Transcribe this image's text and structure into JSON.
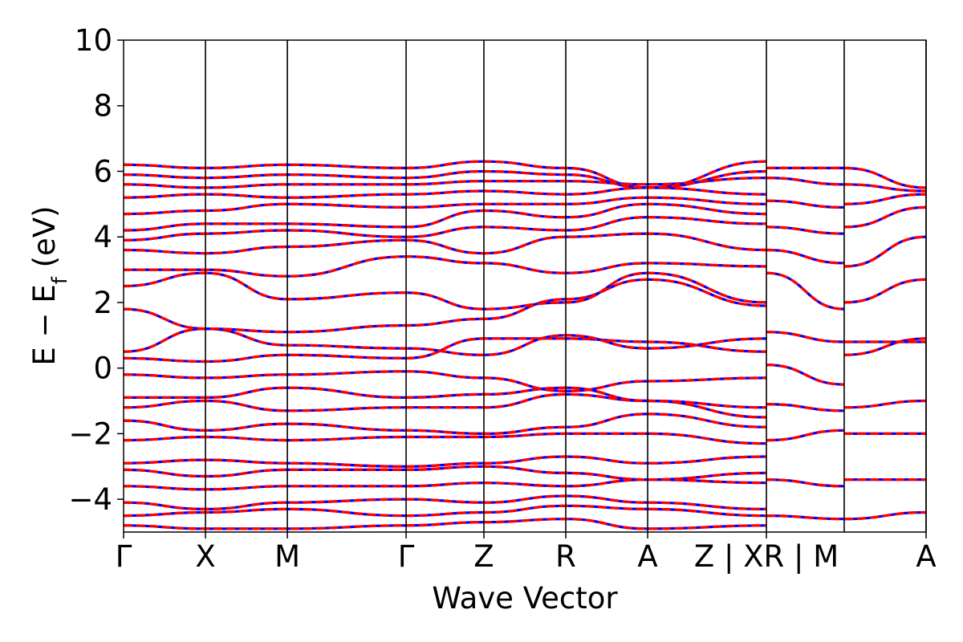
{
  "chart_data": {
    "type": "line",
    "title": "",
    "xlabel": "Wave Vector",
    "ylabel": "E − E",
    "ylabel_sub": "f",
    "ylabel_unit": " (eV)",
    "ylim": [
      -5,
      10
    ],
    "y_ticks": [
      -4,
      -2,
      0,
      2,
      4,
      6,
      8,
      10
    ],
    "y_tick_labels": [
      "−4",
      "−2",
      "0",
      "2",
      "4",
      "6",
      "8",
      "10"
    ],
    "x_range": [
      0,
      9.8
    ],
    "kpoints": [
      {
        "label": "Γ",
        "x": 0
      },
      {
        "label": "X",
        "x": 1.0
      },
      {
        "label": "M",
        "x": 2.0
      },
      {
        "label": "Γ",
        "x": 3.45
      },
      {
        "label": "Z",
        "x": 4.4
      },
      {
        "label": "R",
        "x": 5.4
      },
      {
        "label": "A",
        "x": 6.4
      },
      {
        "label": "Z | XR | M",
        "x": 7.85
      },
      {
        "label": "A",
        "x": 9.8
      }
    ],
    "divider_x": [
      1.0,
      2.0,
      3.45,
      4.4,
      5.4,
      6.4,
      7.85,
      8.8,
      9.8
    ],
    "grid": false,
    "legend": "none",
    "series_colors": [
      "#0000ff",
      "#ff0000"
    ],
    "series_styles": [
      "solid",
      "dashed"
    ],
    "bands": [
      {
        "x": [
          0,
          1.0,
          2.0,
          3.45,
          4.4,
          5.4,
          6.4,
          7.85
        ],
        "y": [
          -4.8,
          -4.9,
          -4.9,
          -4.8,
          -4.7,
          -4.6,
          -4.9,
          -4.8
        ]
      },
      {
        "x": [
          0,
          1.0,
          2.0,
          3.45,
          4.4,
          5.4,
          6.4,
          7.85
        ],
        "y": [
          -4.5,
          -4.4,
          -4.3,
          -4.5,
          -4.4,
          -4.2,
          -4.3,
          -4.5
        ]
      },
      {
        "x": [
          0,
          1.0,
          2.0,
          3.45,
          4.4,
          5.4,
          6.4,
          7.85
        ],
        "y": [
          -4.1,
          -4.3,
          -4.1,
          -4.0,
          -4.1,
          -3.9,
          -4.1,
          -4.3
        ]
      },
      {
        "x": [
          0,
          1.0,
          2.0,
          3.45,
          4.4,
          5.4,
          6.4,
          7.85
        ],
        "y": [
          -3.6,
          -3.7,
          -3.6,
          -3.6,
          -3.5,
          -3.6,
          -3.4,
          -3.5
        ]
      },
      {
        "x": [
          0,
          1.0,
          2.0,
          3.45,
          4.4,
          5.4,
          6.4,
          7.85
        ],
        "y": [
          -3.1,
          -3.3,
          -3.1,
          -3.1,
          -3.0,
          -3.2,
          -3.4,
          -3.2
        ]
      },
      {
        "x": [
          0,
          1.0,
          2.0,
          3.45,
          4.4,
          5.4,
          6.4,
          7.85
        ],
        "y": [
          -2.9,
          -2.8,
          -2.9,
          -3.0,
          -2.9,
          -2.7,
          -2.9,
          -2.7
        ]
      },
      {
        "x": [
          0,
          1.0,
          2.0,
          3.45,
          4.4,
          5.4,
          6.4,
          7.85
        ],
        "y": [
          -2.2,
          -2.1,
          -2.2,
          -2.1,
          -2.1,
          -2.0,
          -2.0,
          -2.3
        ]
      },
      {
        "x": [
          0,
          1.0,
          2.0,
          3.45,
          4.4,
          5.4,
          6.4,
          7.85
        ],
        "y": [
          -1.6,
          -1.9,
          -1.7,
          -1.9,
          -2.0,
          -1.8,
          -1.4,
          -1.8
        ]
      },
      {
        "x": [
          0,
          1.0,
          2.0,
          3.45,
          4.4,
          5.4,
          6.4,
          7.85
        ],
        "y": [
          -1.2,
          -1.0,
          -1.3,
          -1.2,
          -1.2,
          -0.8,
          -1.0,
          -1.5
        ]
      },
      {
        "x": [
          0,
          1.0,
          2.0,
          3.45,
          4.4,
          5.4,
          6.4,
          7.85
        ],
        "y": [
          -0.9,
          -0.9,
          -0.6,
          -0.9,
          -0.8,
          -0.6,
          -1.0,
          -1.2
        ]
      },
      {
        "x": [
          0,
          1.0,
          2.0,
          3.45,
          4.4,
          5.4,
          6.4,
          7.85
        ],
        "y": [
          -0.2,
          -0.3,
          -0.2,
          -0.1,
          -0.3,
          -0.7,
          -0.4,
          -0.3
        ]
      },
      {
        "x": [
          0,
          1.0,
          2.0,
          3.45,
          4.4,
          5.4,
          6.4,
          7.85
        ],
        "y": [
          0.3,
          0.2,
          0.4,
          0.3,
          0.9,
          0.9,
          0.8,
          0.5
        ]
      },
      {
        "x": [
          0,
          1.0,
          2.0,
          3.45,
          4.4,
          5.4,
          6.4,
          7.85
        ],
        "y": [
          0.5,
          1.2,
          0.7,
          0.6,
          0.4,
          1.0,
          0.6,
          0.9
        ]
      },
      {
        "x": [
          0,
          1.0,
          2.0,
          3.45,
          4.4,
          5.4,
          6.4,
          7.85
        ],
        "y": [
          1.8,
          1.2,
          1.1,
          1.3,
          1.5,
          2.1,
          2.7,
          1.9
        ]
      },
      {
        "x": [
          0,
          1.0,
          2.0,
          3.45,
          4.4,
          5.4,
          6.4,
          7.85
        ],
        "y": [
          2.5,
          2.9,
          2.1,
          2.3,
          1.8,
          2.0,
          2.9,
          2.0
        ]
      },
      {
        "x": [
          0,
          1.0,
          2.0,
          3.45,
          4.4,
          5.4,
          6.4,
          7.85
        ],
        "y": [
          3.0,
          3.0,
          2.8,
          3.4,
          3.2,
          2.9,
          3.2,
          3.1
        ]
      },
      {
        "x": [
          0,
          1.0,
          2.0,
          3.45,
          4.4,
          5.4,
          6.4,
          7.85
        ],
        "y": [
          3.6,
          3.5,
          3.7,
          3.9,
          3.5,
          4.0,
          4.1,
          3.6
        ]
      },
      {
        "x": [
          0,
          1.0,
          2.0,
          3.45,
          4.4,
          5.4,
          6.4,
          7.85
        ],
        "y": [
          3.9,
          4.1,
          4.2,
          4.0,
          4.3,
          4.2,
          4.6,
          4.4
        ]
      },
      {
        "x": [
          0,
          1.0,
          2.0,
          3.45,
          4.4,
          5.4,
          6.4,
          7.85
        ],
        "y": [
          4.2,
          4.4,
          4.4,
          4.3,
          4.8,
          4.6,
          5.0,
          4.7
        ]
      },
      {
        "x": [
          0,
          1.0,
          2.0,
          3.45,
          4.4,
          5.4,
          6.4,
          7.85
        ],
        "y": [
          4.7,
          4.8,
          5.0,
          4.9,
          5.0,
          5.0,
          5.2,
          5.0
        ]
      },
      {
        "x": [
          0,
          1.0,
          2.0,
          3.45,
          4.4,
          5.4,
          6.4,
          7.85
        ],
        "y": [
          5.2,
          5.3,
          5.2,
          5.3,
          5.4,
          5.3,
          5.5,
          5.3
        ]
      },
      {
        "x": [
          0,
          1.0,
          2.0,
          3.45,
          4.4,
          5.4,
          6.4,
          7.85
        ],
        "y": [
          5.6,
          5.5,
          5.6,
          5.6,
          5.7,
          5.7,
          5.6,
          5.8
        ]
      },
      {
        "x": [
          0,
          1.0,
          2.0,
          3.45,
          4.4,
          5.4,
          6.4,
          7.85
        ],
        "y": [
          5.9,
          5.8,
          5.9,
          5.8,
          6.0,
          5.9,
          5.5,
          6.0
        ]
      },
      {
        "x": [
          0,
          1.0,
          2.0,
          3.45,
          4.4,
          5.4,
          6.4,
          7.85
        ],
        "y": [
          6.2,
          6.1,
          6.2,
          6.1,
          6.3,
          6.1,
          5.5,
          6.3
        ]
      },
      {
        "x": [
          7.85,
          8.8
        ],
        "y": [
          -4.5,
          -4.6
        ]
      },
      {
        "x": [
          7.85,
          8.8
        ],
        "y": [
          -3.4,
          -3.6
        ]
      },
      {
        "x": [
          7.85,
          8.8
        ],
        "y": [
          -2.2,
          -1.9
        ]
      },
      {
        "x": [
          7.85,
          8.8
        ],
        "y": [
          -1.1,
          -1.3
        ]
      },
      {
        "x": [
          7.85,
          8.8
        ],
        "y": [
          0.1,
          -0.5
        ]
      },
      {
        "x": [
          7.85,
          8.8
        ],
        "y": [
          1.1,
          0.8
        ]
      },
      {
        "x": [
          7.85,
          8.8
        ],
        "y": [
          2.9,
          1.8
        ]
      },
      {
        "x": [
          7.85,
          8.8
        ],
        "y": [
          3.6,
          3.2
        ]
      },
      {
        "x": [
          7.85,
          8.8
        ],
        "y": [
          4.3,
          4.1
        ]
      },
      {
        "x": [
          7.85,
          8.8
        ],
        "y": [
          5.1,
          4.9
        ]
      },
      {
        "x": [
          7.85,
          8.8
        ],
        "y": [
          5.8,
          5.6
        ]
      },
      {
        "x": [
          7.85,
          8.8
        ],
        "y": [
          6.1,
          6.1
        ]
      },
      {
        "x": [
          8.8,
          9.8
        ],
        "y": [
          -4.6,
          -4.4
        ]
      },
      {
        "x": [
          8.8,
          9.8
        ],
        "y": [
          -3.4,
          -3.4
        ]
      },
      {
        "x": [
          8.8,
          9.8
        ],
        "y": [
          -2.0,
          -2.0
        ]
      },
      {
        "x": [
          8.8,
          9.8
        ],
        "y": [
          -1.2,
          -1.0
        ]
      },
      {
        "x": [
          8.8,
          9.8
        ],
        "y": [
          0.4,
          0.9
        ]
      },
      {
        "x": [
          8.8,
          9.8
        ],
        "y": [
          0.8,
          0.8
        ]
      },
      {
        "x": [
          8.8,
          9.8
        ],
        "y": [
          2.0,
          2.7
        ]
      },
      {
        "x": [
          8.8,
          9.8
        ],
        "y": [
          3.1,
          4.0
        ]
      },
      {
        "x": [
          8.8,
          9.8
        ],
        "y": [
          4.3,
          4.9
        ]
      },
      {
        "x": [
          8.8,
          9.8
        ],
        "y": [
          5.0,
          5.3
        ]
      },
      {
        "x": [
          8.8,
          9.8
        ],
        "y": [
          5.6,
          5.4
        ]
      },
      {
        "x": [
          8.8,
          9.8
        ],
        "y": [
          6.1,
          5.5
        ]
      }
    ]
  }
}
